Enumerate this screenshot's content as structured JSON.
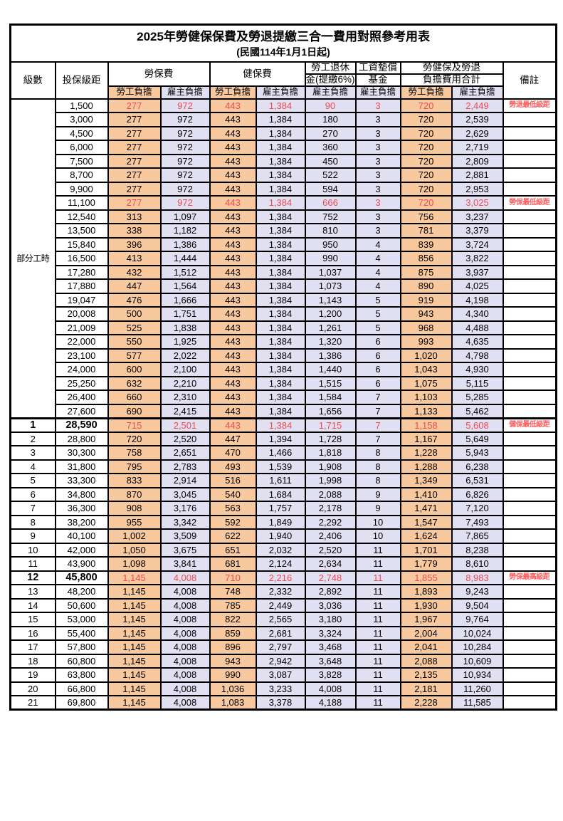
{
  "title": "2025年勞健保保費及勞退提繳三合一費用對照參考用表",
  "subtitle": "(民國114年1月1日起)",
  "columns": {
    "level": "級數",
    "bracket": "投保級距",
    "labor_fee": "勞保費",
    "health_fee": "健保費",
    "pension_l1": "勞工退休",
    "pension_l2": "金(提繳6%)",
    "wage_fund_l1": "工資墊償",
    "wage_fund_l2": "基金",
    "total_l1": "勞健保及勞退",
    "total_l2": "負擔費用合計",
    "employee_share": "勞工負擔",
    "employer_share": "雇主負擔",
    "note": "備註"
  },
  "part_time_label": "部分工時",
  "colors": {
    "employee_bg": "#F8C99E",
    "employer_bg": "#E1E0F2",
    "highlight_text": "#EF4A4E",
    "note_text": "#FF5C5C"
  },
  "rows": [
    {
      "level": "",
      "bracket": "1,500",
      "labor_emp": "277",
      "labor_er": "972",
      "health_emp": "443",
      "health_er": "1,384",
      "pension_er": "90",
      "fund_er": "3",
      "total_emp": "720",
      "total_er": "2,449",
      "note": "勞退最低級距",
      "red": true
    },
    {
      "level": "",
      "bracket": "3,000",
      "labor_emp": "277",
      "labor_er": "972",
      "health_emp": "443",
      "health_er": "1,384",
      "pension_er": "180",
      "fund_er": "3",
      "total_emp": "720",
      "total_er": "2,539",
      "note": ""
    },
    {
      "level": "",
      "bracket": "4,500",
      "labor_emp": "277",
      "labor_er": "972",
      "health_emp": "443",
      "health_er": "1,384",
      "pension_er": "270",
      "fund_er": "3",
      "total_emp": "720",
      "total_er": "2,629",
      "note": ""
    },
    {
      "level": "",
      "bracket": "6,000",
      "labor_emp": "277",
      "labor_er": "972",
      "health_emp": "443",
      "health_er": "1,384",
      "pension_er": "360",
      "fund_er": "3",
      "total_emp": "720",
      "total_er": "2,719",
      "note": ""
    },
    {
      "level": "",
      "bracket": "7,500",
      "labor_emp": "277",
      "labor_er": "972",
      "health_emp": "443",
      "health_er": "1,384",
      "pension_er": "450",
      "fund_er": "3",
      "total_emp": "720",
      "total_er": "2,809",
      "note": ""
    },
    {
      "level": "",
      "bracket": "8,700",
      "labor_emp": "277",
      "labor_er": "972",
      "health_emp": "443",
      "health_er": "1,384",
      "pension_er": "522",
      "fund_er": "3",
      "total_emp": "720",
      "total_er": "2,881",
      "note": ""
    },
    {
      "level": "",
      "bracket": "9,900",
      "labor_emp": "277",
      "labor_er": "972",
      "health_emp": "443",
      "health_er": "1,384",
      "pension_er": "594",
      "fund_er": "3",
      "total_emp": "720",
      "total_er": "2,953",
      "note": ""
    },
    {
      "level": "",
      "bracket": "11,100",
      "labor_emp": "277",
      "labor_er": "972",
      "health_emp": "443",
      "health_er": "1,384",
      "pension_er": "666",
      "fund_er": "3",
      "total_emp": "720",
      "total_er": "3,025",
      "note": "勞保最低級距",
      "red": true
    },
    {
      "level": "",
      "bracket": "12,540",
      "labor_emp": "313",
      "labor_er": "1,097",
      "health_emp": "443",
      "health_er": "1,384",
      "pension_er": "752",
      "fund_er": "3",
      "total_emp": "756",
      "total_er": "3,237",
      "note": ""
    },
    {
      "level": "",
      "bracket": "13,500",
      "labor_emp": "338",
      "labor_er": "1,182",
      "health_emp": "443",
      "health_er": "1,384",
      "pension_er": "810",
      "fund_er": "3",
      "total_emp": "781",
      "total_er": "3,379",
      "note": ""
    },
    {
      "level": "",
      "bracket": "15,840",
      "labor_emp": "396",
      "labor_er": "1,386",
      "health_emp": "443",
      "health_er": "1,384",
      "pension_er": "950",
      "fund_er": "4",
      "total_emp": "839",
      "total_er": "3,724",
      "note": ""
    },
    {
      "level": "",
      "bracket": "16,500",
      "labor_emp": "413",
      "labor_er": "1,444",
      "health_emp": "443",
      "health_er": "1,384",
      "pension_er": "990",
      "fund_er": "4",
      "total_emp": "856",
      "total_er": "3,822",
      "note": ""
    },
    {
      "level": "",
      "bracket": "17,280",
      "labor_emp": "432",
      "labor_er": "1,512",
      "health_emp": "443",
      "health_er": "1,384",
      "pension_er": "1,037",
      "fund_er": "4",
      "total_emp": "875",
      "total_er": "3,937",
      "note": ""
    },
    {
      "level": "",
      "bracket": "17,880",
      "labor_emp": "447",
      "labor_er": "1,564",
      "health_emp": "443",
      "health_er": "1,384",
      "pension_er": "1,073",
      "fund_er": "4",
      "total_emp": "890",
      "total_er": "4,025",
      "note": ""
    },
    {
      "level": "",
      "bracket": "19,047",
      "labor_emp": "476",
      "labor_er": "1,666",
      "health_emp": "443",
      "health_er": "1,384",
      "pension_er": "1,143",
      "fund_er": "5",
      "total_emp": "919",
      "total_er": "4,198",
      "note": ""
    },
    {
      "level": "",
      "bracket": "20,008",
      "labor_emp": "500",
      "labor_er": "1,751",
      "health_emp": "443",
      "health_er": "1,384",
      "pension_er": "1,200",
      "fund_er": "5",
      "total_emp": "943",
      "total_er": "4,340",
      "note": ""
    },
    {
      "level": "",
      "bracket": "21,009",
      "labor_emp": "525",
      "labor_er": "1,838",
      "health_emp": "443",
      "health_er": "1,384",
      "pension_er": "1,261",
      "fund_er": "5",
      "total_emp": "968",
      "total_er": "4,488",
      "note": ""
    },
    {
      "level": "",
      "bracket": "22,000",
      "labor_emp": "550",
      "labor_er": "1,925",
      "health_emp": "443",
      "health_er": "1,384",
      "pension_er": "1,320",
      "fund_er": "6",
      "total_emp": "993",
      "total_er": "4,635",
      "note": ""
    },
    {
      "level": "",
      "bracket": "23,100",
      "labor_emp": "577",
      "labor_er": "2,022",
      "health_emp": "443",
      "health_er": "1,384",
      "pension_er": "1,386",
      "fund_er": "6",
      "total_emp": "1,020",
      "total_er": "4,798",
      "note": ""
    },
    {
      "level": "",
      "bracket": "24,000",
      "labor_emp": "600",
      "labor_er": "2,100",
      "health_emp": "443",
      "health_er": "1,384",
      "pension_er": "1,440",
      "fund_er": "6",
      "total_emp": "1,043",
      "total_er": "4,930",
      "note": ""
    },
    {
      "level": "",
      "bracket": "25,250",
      "labor_emp": "632",
      "labor_er": "2,210",
      "health_emp": "443",
      "health_er": "1,384",
      "pension_er": "1,515",
      "fund_er": "6",
      "total_emp": "1,075",
      "total_er": "5,115",
      "note": ""
    },
    {
      "level": "",
      "bracket": "26,400",
      "labor_emp": "660",
      "labor_er": "2,310",
      "health_emp": "443",
      "health_er": "1,384",
      "pension_er": "1,584",
      "fund_er": "7",
      "total_emp": "1,103",
      "total_er": "5,285",
      "note": ""
    },
    {
      "level": "",
      "bracket": "27,600",
      "labor_emp": "690",
      "labor_er": "2,415",
      "health_emp": "443",
      "health_er": "1,384",
      "pension_er": "1,656",
      "fund_er": "7",
      "total_emp": "1,133",
      "total_er": "5,462",
      "note": ""
    },
    {
      "level": "1",
      "bracket": "28,590",
      "labor_emp": "715",
      "labor_er": "2,501",
      "health_emp": "443",
      "health_er": "1,384",
      "pension_er": "1,715",
      "fund_er": "7",
      "total_emp": "1,158",
      "total_er": "5,608",
      "note": "健保最低級距",
      "red": true,
      "bold": true,
      "section_start": true
    },
    {
      "level": "2",
      "bracket": "28,800",
      "labor_emp": "720",
      "labor_er": "2,520",
      "health_emp": "447",
      "health_er": "1,394",
      "pension_er": "1,728",
      "fund_er": "7",
      "total_emp": "1,167",
      "total_er": "5,649",
      "note": ""
    },
    {
      "level": "3",
      "bracket": "30,300",
      "labor_emp": "758",
      "labor_er": "2,651",
      "health_emp": "470",
      "health_er": "1,466",
      "pension_er": "1,818",
      "fund_er": "8",
      "total_emp": "1,228",
      "total_er": "5,943",
      "note": ""
    },
    {
      "level": "4",
      "bracket": "31,800",
      "labor_emp": "795",
      "labor_er": "2,783",
      "health_emp": "493",
      "health_er": "1,539",
      "pension_er": "1,908",
      "fund_er": "8",
      "total_emp": "1,288",
      "total_er": "6,238",
      "note": ""
    },
    {
      "level": "5",
      "bracket": "33,300",
      "labor_emp": "833",
      "labor_er": "2,914",
      "health_emp": "516",
      "health_er": "1,611",
      "pension_er": "1,998",
      "fund_er": "8",
      "total_emp": "1,349",
      "total_er": "6,531",
      "note": ""
    },
    {
      "level": "6",
      "bracket": "34,800",
      "labor_emp": "870",
      "labor_er": "3,045",
      "health_emp": "540",
      "health_er": "1,684",
      "pension_er": "2,088",
      "fund_er": "9",
      "total_emp": "1,410",
      "total_er": "6,826",
      "note": ""
    },
    {
      "level": "7",
      "bracket": "36,300",
      "labor_emp": "908",
      "labor_er": "3,176",
      "health_emp": "563",
      "health_er": "1,757",
      "pension_er": "2,178",
      "fund_er": "9",
      "total_emp": "1,471",
      "total_er": "7,120",
      "note": ""
    },
    {
      "level": "8",
      "bracket": "38,200",
      "labor_emp": "955",
      "labor_er": "3,342",
      "health_emp": "592",
      "health_er": "1,849",
      "pension_er": "2,292",
      "fund_er": "10",
      "total_emp": "1,547",
      "total_er": "7,493",
      "note": ""
    },
    {
      "level": "9",
      "bracket": "40,100",
      "labor_emp": "1,002",
      "labor_er": "3,509",
      "health_emp": "622",
      "health_er": "1,940",
      "pension_er": "2,406",
      "fund_er": "10",
      "total_emp": "1,624",
      "total_er": "7,865",
      "note": ""
    },
    {
      "level": "10",
      "bracket": "42,000",
      "labor_emp": "1,050",
      "labor_er": "3,675",
      "health_emp": "651",
      "health_er": "2,032",
      "pension_er": "2,520",
      "fund_er": "11",
      "total_emp": "1,701",
      "total_er": "8,238",
      "note": ""
    },
    {
      "level": "11",
      "bracket": "43,900",
      "labor_emp": "1,098",
      "labor_er": "3,841",
      "health_emp": "681",
      "health_er": "2,124",
      "pension_er": "2,634",
      "fund_er": "11",
      "total_emp": "1,779",
      "total_er": "8,610",
      "note": ""
    },
    {
      "level": "12",
      "bracket": "45,800",
      "labor_emp": "1,145",
      "labor_er": "4,008",
      "health_emp": "710",
      "health_er": "2,216",
      "pension_er": "2,748",
      "fund_er": "11",
      "total_emp": "1,855",
      "total_er": "8,983",
      "note": "勞保最高級距",
      "red": true,
      "bold": true
    },
    {
      "level": "13",
      "bracket": "48,200",
      "labor_emp": "1,145",
      "labor_er": "4,008",
      "health_emp": "748",
      "health_er": "2,332",
      "pension_er": "2,892",
      "fund_er": "11",
      "total_emp": "1,893",
      "total_er": "9,243",
      "note": ""
    },
    {
      "level": "14",
      "bracket": "50,600",
      "labor_emp": "1,145",
      "labor_er": "4,008",
      "health_emp": "785",
      "health_er": "2,449",
      "pension_er": "3,036",
      "fund_er": "11",
      "total_emp": "1,930",
      "total_er": "9,504",
      "note": ""
    },
    {
      "level": "15",
      "bracket": "53,000",
      "labor_emp": "1,145",
      "labor_er": "4,008",
      "health_emp": "822",
      "health_er": "2,565",
      "pension_er": "3,180",
      "fund_er": "11",
      "total_emp": "1,967",
      "total_er": "9,764",
      "note": ""
    },
    {
      "level": "16",
      "bracket": "55,400",
      "labor_emp": "1,145",
      "labor_er": "4,008",
      "health_emp": "859",
      "health_er": "2,681",
      "pension_er": "3,324",
      "fund_er": "11",
      "total_emp": "2,004",
      "total_er": "10,024",
      "note": ""
    },
    {
      "level": "17",
      "bracket": "57,800",
      "labor_emp": "1,145",
      "labor_er": "4,008",
      "health_emp": "896",
      "health_er": "2,797",
      "pension_er": "3,468",
      "fund_er": "11",
      "total_emp": "2,041",
      "total_er": "10,284",
      "note": ""
    },
    {
      "level": "18",
      "bracket": "60,800",
      "labor_emp": "1,145",
      "labor_er": "4,008",
      "health_emp": "943",
      "health_er": "2,942",
      "pension_er": "3,648",
      "fund_er": "11",
      "total_emp": "2,088",
      "total_er": "10,609",
      "note": ""
    },
    {
      "level": "19",
      "bracket": "63,800",
      "labor_emp": "1,145",
      "labor_er": "4,008",
      "health_emp": "990",
      "health_er": "3,087",
      "pension_er": "3,828",
      "fund_er": "11",
      "total_emp": "2,135",
      "total_er": "10,934",
      "note": ""
    },
    {
      "level": "20",
      "bracket": "66,800",
      "labor_emp": "1,145",
      "labor_er": "4,008",
      "health_emp": "1,036",
      "health_er": "3,233",
      "pension_er": "4,008",
      "fund_er": "11",
      "total_emp": "2,181",
      "total_er": "11,260",
      "note": ""
    },
    {
      "level": "21",
      "bracket": "69,800",
      "labor_emp": "1,145",
      "labor_er": "4,008",
      "health_emp": "1,083",
      "health_er": "3,378",
      "pension_er": "4,188",
      "fund_er": "11",
      "total_emp": "2,228",
      "total_er": "11,585",
      "note": ""
    }
  ]
}
